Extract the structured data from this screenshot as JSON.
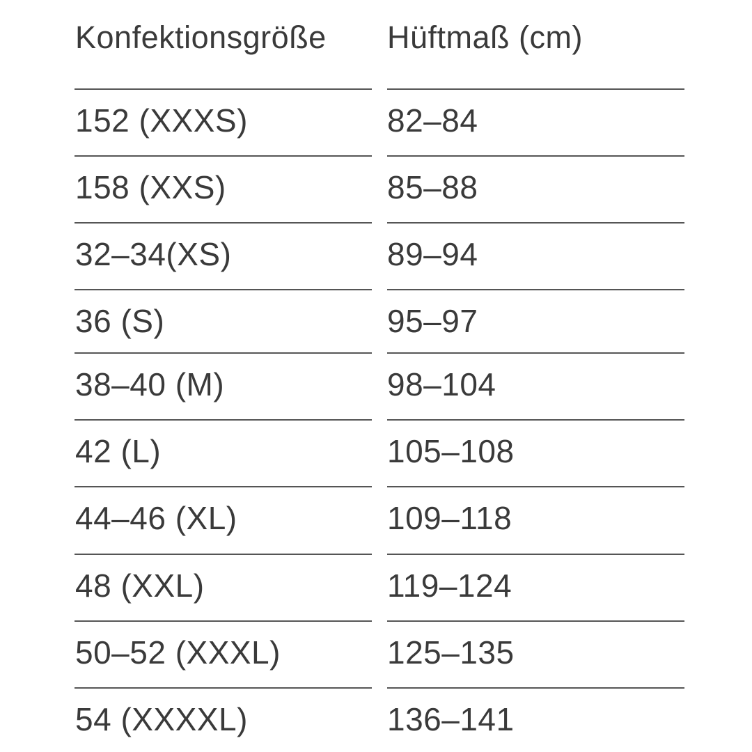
{
  "headers": [
    "Konfektionsgröße",
    "Hüftmaß (cm)"
  ],
  "rows": [
    {
      "size": "152 (XXXS)",
      "hip": "82–84"
    },
    {
      "size": "158 (XXS)",
      "hip": "85–88"
    },
    {
      "size": "32–34(XS)",
      "hip": "89–94"
    },
    {
      "size": "36 (S)",
      "hip": "95–97"
    },
    {
      "size": "38–40 (M)",
      "hip": "98–104"
    },
    {
      "size": "42 (L)",
      "hip": "105–108"
    },
    {
      "size": "44–46 (XL)",
      "hip": "109–118"
    },
    {
      "size": "48 (XXL)",
      "hip": "119–124"
    },
    {
      "size": "50–52 (XXXL)",
      "hip": "125–135"
    },
    {
      "size": "54 (XXXXL)",
      "hip": "136–141"
    }
  ]
}
